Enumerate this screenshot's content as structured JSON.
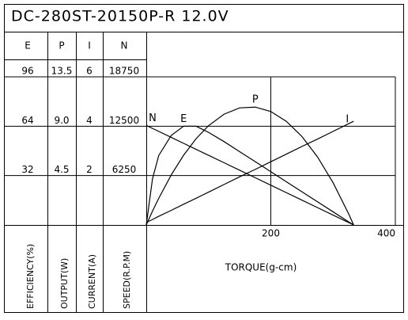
{
  "chart_data": {
    "type": "line",
    "title": "DC-280ST-20150P-R   12.0V",
    "x_label": "TORQUE(g-cm)",
    "x": [
      0,
      10,
      20,
      40,
      60,
      80,
      100,
      125,
      150,
      175,
      200,
      225,
      250,
      275,
      300,
      325,
      333
    ],
    "xlim": [
      0,
      400
    ],
    "xticks": [
      200,
      400
    ],
    "series": [
      {
        "name": "E",
        "axis_label": "EFFICIENCY(%)",
        "color": "#000000",
        "ylim": [
          0,
          96
        ],
        "yticks": [
          32,
          64,
          96
        ],
        "values": [
          0,
          30,
          45,
          58,
          64,
          64,
          60,
          54,
          47.5,
          41,
          34.5,
          28,
          21.5,
          15,
          8.5,
          2,
          0
        ]
      },
      {
        "name": "P",
        "axis_label": "OUTPUT(W)",
        "color": "#000000",
        "ylim": [
          0,
          13.5
        ],
        "yticks": [
          4.5,
          {
            "value": 9,
            "label": "9.0"
          },
          13.5
        ],
        "values": [
          0,
          1.26,
          2.43,
          4.55,
          6.36,
          7.86,
          9.05,
          10.1,
          10.67,
          10.74,
          10.34,
          9.44,
          8.06,
          6.2,
          3.85,
          1.01,
          0
        ]
      },
      {
        "name": "I",
        "axis_label": "CURRENT(A)",
        "color": "#000000",
        "ylim": [
          0,
          6
        ],
        "yticks": [
          2,
          4,
          6
        ],
        "values": [
          0.1,
          0.22,
          0.35,
          0.59,
          0.84,
          1.08,
          1.33,
          1.64,
          1.95,
          2.25,
          2.56,
          2.87,
          3.18,
          3.48,
          3.79,
          4.1,
          4.2
        ]
      },
      {
        "name": "N",
        "axis_label": "SPEED(R.P.M)",
        "color": "#000000",
        "ylim": [
          0,
          18750
        ],
        "yticks": [
          6250,
          12500,
          18750
        ],
        "values": [
          12600,
          12222,
          11843,
          11087,
          10330,
          9573,
          8816,
          7870,
          6924,
          5978,
          5032,
          4087,
          3141,
          2195,
          1249,
          303,
          0
        ]
      }
    ]
  }
}
